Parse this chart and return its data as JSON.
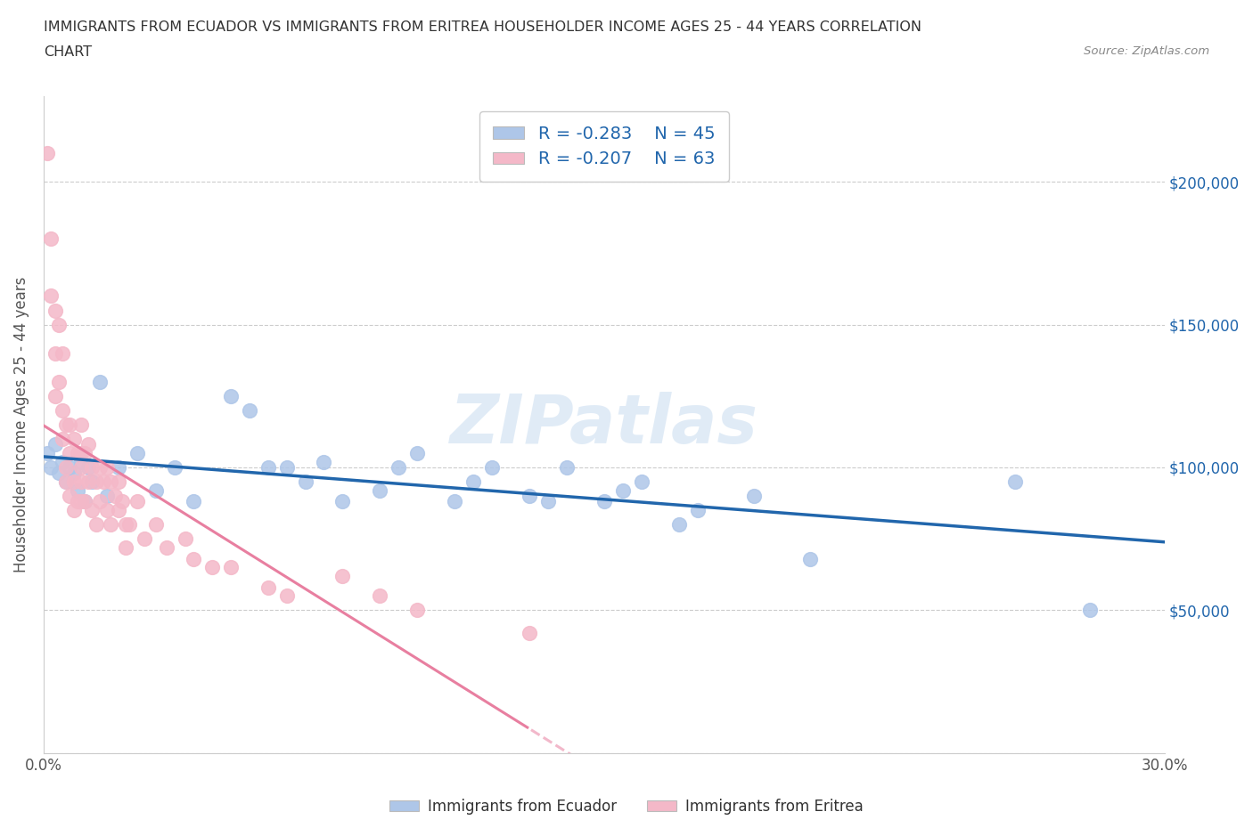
{
  "title_line1": "IMMIGRANTS FROM ECUADOR VS IMMIGRANTS FROM ERITREA HOUSEHOLDER INCOME AGES 25 - 44 YEARS CORRELATION",
  "title_line2": "CHART",
  "source": "Source: ZipAtlas.com",
  "ylabel": "Householder Income Ages 25 - 44 years",
  "xlim": [
    0.0,
    0.3
  ],
  "ylim": [
    0,
    230000
  ],
  "yticks": [
    0,
    50000,
    100000,
    150000,
    200000
  ],
  "ytick_labels": [
    "",
    "$50,000",
    "$100,000",
    "$150,000",
    "$200,000"
  ],
  "xticks": [
    0.0,
    0.05,
    0.1,
    0.15,
    0.2,
    0.25,
    0.3
  ],
  "xtick_labels": [
    "0.0%",
    "",
    "",
    "",
    "",
    "",
    "30.0%"
  ],
  "ecuador_R": -0.283,
  "ecuador_N": 45,
  "eritrea_R": -0.207,
  "eritrea_N": 63,
  "ecuador_color": "#aec6e8",
  "eritrea_color": "#f4b8c8",
  "ecuador_line_color": "#2166ac",
  "eritrea_line_color": "#e87fa0",
  "ecuador_scatter_x": [
    0.001,
    0.002,
    0.003,
    0.004,
    0.005,
    0.006,
    0.007,
    0.008,
    0.009,
    0.01,
    0.011,
    0.012,
    0.013,
    0.015,
    0.017,
    0.02,
    0.025,
    0.03,
    0.035,
    0.04,
    0.05,
    0.055,
    0.06,
    0.065,
    0.07,
    0.075,
    0.08,
    0.09,
    0.095,
    0.1,
    0.11,
    0.115,
    0.12,
    0.13,
    0.135,
    0.14,
    0.15,
    0.155,
    0.16,
    0.17,
    0.175,
    0.19,
    0.205,
    0.26,
    0.28
  ],
  "ecuador_scatter_y": [
    105000,
    100000,
    108000,
    98000,
    102000,
    95000,
    100000,
    98000,
    92000,
    102000,
    88000,
    100000,
    95000,
    130000,
    90000,
    100000,
    105000,
    92000,
    100000,
    88000,
    125000,
    120000,
    100000,
    100000,
    95000,
    102000,
    88000,
    92000,
    100000,
    105000,
    88000,
    95000,
    100000,
    90000,
    88000,
    100000,
    88000,
    92000,
    95000,
    80000,
    85000,
    90000,
    68000,
    95000,
    50000
  ],
  "eritrea_scatter_x": [
    0.001,
    0.002,
    0.002,
    0.003,
    0.003,
    0.003,
    0.004,
    0.004,
    0.005,
    0.005,
    0.005,
    0.006,
    0.006,
    0.006,
    0.007,
    0.007,
    0.007,
    0.008,
    0.008,
    0.008,
    0.009,
    0.009,
    0.01,
    0.01,
    0.01,
    0.01,
    0.01,
    0.011,
    0.011,
    0.012,
    0.012,
    0.013,
    0.013,
    0.014,
    0.014,
    0.015,
    0.015,
    0.016,
    0.017,
    0.017,
    0.018,
    0.018,
    0.019,
    0.02,
    0.02,
    0.021,
    0.022,
    0.022,
    0.023,
    0.025,
    0.027,
    0.03,
    0.033,
    0.038,
    0.04,
    0.045,
    0.05,
    0.06,
    0.065,
    0.08,
    0.09,
    0.1,
    0.13
  ],
  "eritrea_scatter_y": [
    210000,
    180000,
    160000,
    155000,
    140000,
    125000,
    150000,
    130000,
    140000,
    120000,
    110000,
    115000,
    100000,
    95000,
    115000,
    105000,
    90000,
    110000,
    95000,
    85000,
    105000,
    88000,
    115000,
    105000,
    100000,
    95000,
    88000,
    105000,
    88000,
    108000,
    95000,
    100000,
    85000,
    95000,
    80000,
    100000,
    88000,
    95000,
    100000,
    85000,
    95000,
    80000,
    90000,
    95000,
    85000,
    88000,
    80000,
    72000,
    80000,
    88000,
    75000,
    80000,
    72000,
    75000,
    68000,
    65000,
    65000,
    58000,
    55000,
    62000,
    55000,
    50000,
    42000
  ],
  "watermark": "ZIPatlas",
  "background_color": "#ffffff",
  "grid_color": "#cccccc"
}
